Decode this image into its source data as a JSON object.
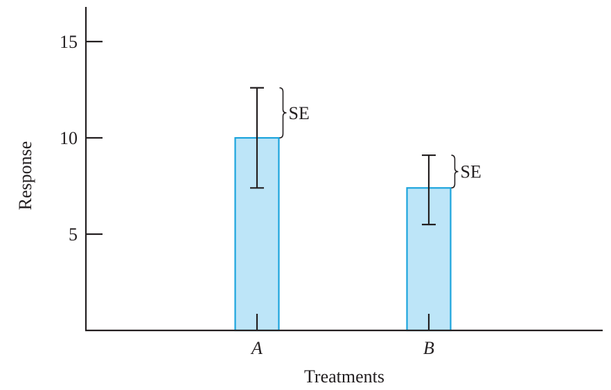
{
  "chart_data": {
    "type": "bar",
    "title": "",
    "xlabel": "Treatments",
    "ylabel": "Response",
    "categories": [
      "A",
      "B"
    ],
    "values": [
      10,
      7.4
    ],
    "error_bars": {
      "label": "SE",
      "upper": [
        12.6,
        9.1
      ],
      "lower": [
        7.4,
        5.5
      ]
    },
    "ylim": [
      0,
      16.8
    ],
    "yticks": [
      5,
      10,
      15
    ],
    "grid": false,
    "legend": "none"
  },
  "colors": {
    "bar_fill": "#bde5f8",
    "bar_stroke": "#1aa3dc",
    "ink": "#231f20"
  }
}
